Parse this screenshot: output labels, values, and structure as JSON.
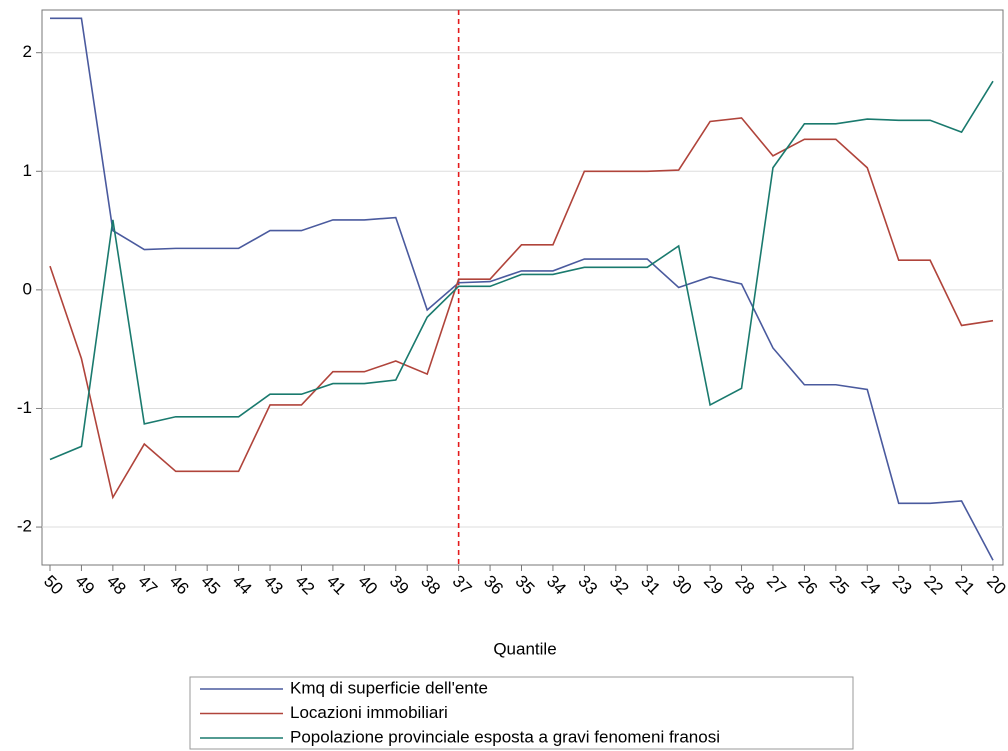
{
  "chart_data": {
    "type": "line",
    "x_label": "Quantile",
    "categories": [
      "50",
      "49",
      "48",
      "47",
      "46",
      "45",
      "44",
      "43",
      "42",
      "41",
      "40",
      "39",
      "38",
      "37",
      "36",
      "35",
      "34",
      "33",
      "32",
      "31",
      "30",
      "29",
      "28",
      "27",
      "26",
      "25",
      "24",
      "23",
      "22",
      "21",
      "20"
    ],
    "series": [
      {
        "name": "Kmq di superficie dell'ente",
        "color": "#4a5a9e",
        "values": [
          2.29,
          2.29,
          0.5,
          0.34,
          0.35,
          0.35,
          0.35,
          0.5,
          0.5,
          0.59,
          0.59,
          0.61,
          -0.17,
          0.06,
          0.07,
          0.16,
          0.16,
          0.26,
          0.26,
          0.26,
          0.02,
          0.11,
          0.05,
          -0.49,
          -0.8,
          -0.8,
          -0.84,
          -1.8,
          -1.8,
          -1.78,
          -2.28
        ]
      },
      {
        "name": "Locazioni immobiliari",
        "color": "#b0443b",
        "values": [
          0.2,
          -0.58,
          -1.75,
          -1.3,
          -1.53,
          -1.53,
          -1.53,
          -0.97,
          -0.97,
          -0.69,
          -0.69,
          -0.6,
          -0.71,
          0.09,
          0.09,
          0.38,
          0.38,
          1.0,
          1.0,
          1.0,
          1.01,
          1.42,
          1.45,
          1.13,
          1.27,
          1.27,
          1.03,
          0.25,
          0.25,
          -0.3,
          -0.26
        ]
      },
      {
        "name": "Popolazione provinciale esposta a gravi fenomeni franosi",
        "color": "#1a7a6e",
        "values": [
          -1.43,
          -1.32,
          0.59,
          -1.13,
          -1.07,
          -1.07,
          -1.07,
          -0.88,
          -0.88,
          -0.79,
          -0.79,
          -0.76,
          -0.23,
          0.03,
          0.03,
          0.13,
          0.13,
          0.19,
          0.19,
          0.19,
          0.37,
          -0.97,
          -0.83,
          1.03,
          1.4,
          1.4,
          1.44,
          1.43,
          1.43,
          1.33,
          1.76
        ]
      }
    ],
    "ylim": [
      -2.32,
      2.36
    ],
    "yticks": [
      -2,
      -1,
      0,
      1,
      2
    ],
    "grid": true,
    "reference_line": {
      "x": "37",
      "color": "#e41a1c"
    },
    "legend": "bottom"
  }
}
